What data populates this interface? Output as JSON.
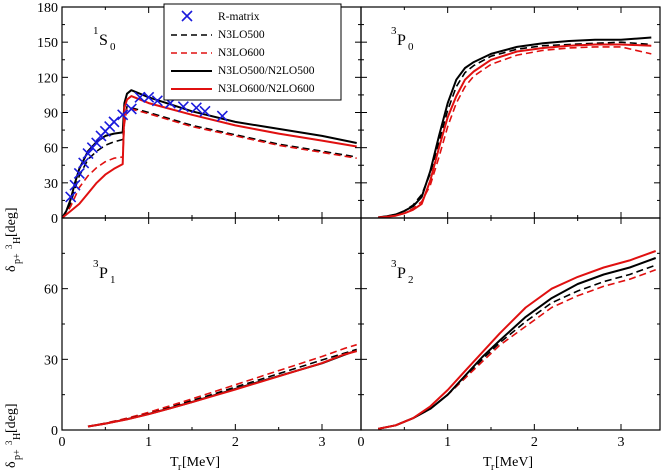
{
  "chart_data": {
    "type": "line",
    "layout": "2x2 shared axes",
    "legend": {
      "panel": "1S0",
      "placement": "top-right",
      "entries": [
        {
          "key": "rmatrix",
          "label": "R-matrix",
          "marker": "x",
          "color": "#1a1adc"
        },
        {
          "key": "n3lo500",
          "label": "N3LO500",
          "style": "dashed",
          "color": "#000000"
        },
        {
          "key": "n3lo600",
          "label": "N3LO600",
          "style": "dashed",
          "color": "#e01010"
        },
        {
          "key": "n3lo500n2lo500",
          "label": "N3LO500/N2LO500",
          "style": "solid",
          "color": "#000000"
        },
        {
          "key": "n3lo600n2lo600",
          "label": "N3LO600/N2LO600",
          "style": "solid",
          "color": "#e01010"
        }
      ]
    },
    "panels": [
      {
        "id": "1S0",
        "label_sup": "1",
        "label_main": "S",
        "label_sub": "0",
        "xlim": [
          0,
          3.45
        ],
        "ylim": [
          0,
          180
        ],
        "yticks": [
          0,
          30,
          60,
          90,
          120,
          150,
          180
        ],
        "series": [
          {
            "key": "n3lo500",
            "x": [
              0,
              0.05,
              0.1,
              0.15,
              0.2,
              0.3,
              0.4,
              0.5,
              0.6,
              0.7,
              0.72,
              0.75,
              1.0,
              1.5,
              2.0,
              2.5,
              3.0,
              3.4
            ],
            "y": [
              0,
              5,
              13,
              25,
              36,
              50,
              57,
              62,
              65,
              67,
              82,
              95,
              90,
              79,
              71,
              63,
              57,
              52
            ]
          },
          {
            "key": "n3lo600",
            "x": [
              0,
              0.05,
              0.1,
              0.15,
              0.2,
              0.3,
              0.4,
              0.5,
              0.6,
              0.7,
              0.72,
              0.75,
              1.0,
              1.5,
              2.0,
              2.5,
              3.0,
              3.4
            ],
            "y": [
              0,
              4,
              10,
              18,
              26,
              36,
              43,
              48,
              51,
              52,
              80,
              94,
              89,
              78,
              70,
              62,
              56,
              51
            ]
          },
          {
            "key": "n3lo500n2lo500",
            "x": [
              0,
              0.05,
              0.1,
              0.15,
              0.2,
              0.3,
              0.4,
              0.5,
              0.6,
              0.7,
              0.72,
              0.75,
              0.8,
              1.0,
              1.5,
              2.0,
              2.5,
              3.0,
              3.4
            ],
            "y": [
              0,
              6,
              16,
              30,
              42,
              57,
              65,
              70,
              72,
              73,
              98,
              106,
              109,
              103,
              91,
              82,
              76,
              70,
              64
            ]
          },
          {
            "key": "n3lo600n2lo600",
            "x": [
              0,
              0.05,
              0.1,
              0.2,
              0.3,
              0.4,
              0.5,
              0.6,
              0.7,
              0.72,
              0.75,
              0.8,
              1.0,
              1.5,
              2.0,
              2.5,
              3.0,
              3.4
            ],
            "y": [
              0,
              3,
              6,
              12,
              21,
              30,
              37,
              42,
              46,
              94,
              101,
              104,
              98,
              88,
              79,
              72,
              66,
              61
            ]
          },
          {
            "key": "rmatrix",
            "x": [
              0.1,
              0.15,
              0.2,
              0.25,
              0.3,
              0.35,
              0.4,
              0.45,
              0.5,
              0.55,
              0.6,
              0.7,
              0.8,
              0.9,
              1.0,
              1.1,
              1.25,
              1.4,
              1.55,
              1.65,
              1.85
            ],
            "y": [
              18,
              28,
              38,
              47,
              55,
              60,
              64,
              70,
              74,
              78,
              82,
              88,
              93,
              103,
              103,
              100,
              98,
              95,
              94,
              91,
              87
            ]
          }
        ]
      },
      {
        "id": "3P0",
        "label_sup": "3",
        "label_main": "P",
        "label_sub": "0",
        "xlim": [
          0,
          3.45
        ],
        "ylim": [
          0,
          180
        ],
        "yticks": [
          0,
          30,
          60,
          90,
          120,
          150,
          180
        ],
        "series": [
          {
            "key": "n3lo500",
            "x": [
              0.2,
              0.3,
              0.4,
              0.5,
              0.6,
              0.7,
              0.8,
              0.9,
              1.0,
              1.1,
              1.2,
              1.3,
              1.5,
              1.8,
              2.1,
              2.4,
              2.7,
              3.0,
              3.35
            ],
            "y": [
              0.5,
              1.5,
              3,
              6,
              11,
              20,
              38,
              65,
              92,
              112,
              124,
              130,
              138,
              144,
              147,
              148,
              149,
              150,
              148
            ]
          },
          {
            "key": "n3lo600",
            "x": [
              0.2,
              0.3,
              0.4,
              0.5,
              0.6,
              0.7,
              0.8,
              0.9,
              1.0,
              1.1,
              1.2,
              1.3,
              1.5,
              1.8,
              2.1,
              2.4,
              2.7,
              3.0,
              3.35
            ],
            "y": [
              0.5,
              1,
              2,
              4,
              8,
              14,
              28,
              52,
              78,
              98,
              112,
              121,
              131,
              139,
              143,
              145,
              146,
              146,
              140
            ]
          },
          {
            "key": "n3lo500n2lo500",
            "x": [
              0.2,
              0.3,
              0.4,
              0.5,
              0.6,
              0.7,
              0.8,
              0.9,
              1.0,
              1.1,
              1.2,
              1.3,
              1.5,
              1.8,
              2.1,
              2.4,
              2.7,
              3.0,
              3.35
            ],
            "y": [
              0.5,
              1.5,
              3,
              6,
              10,
              18,
              40,
              70,
              98,
              118,
              128,
              133,
              140,
              146,
              149,
              151,
              152,
              152,
              154
            ]
          },
          {
            "key": "n3lo600n2lo600",
            "x": [
              0.2,
              0.3,
              0.4,
              0.5,
              0.6,
              0.7,
              0.8,
              0.9,
              1.0,
              1.1,
              1.2,
              1.3,
              1.5,
              1.8,
              2.1,
              2.4,
              2.7,
              3.0,
              3.35
            ],
            "y": [
              0.5,
              1,
              2,
              4,
              7,
              12,
              32,
              60,
              86,
              104,
              118,
              125,
              135,
              142,
              145,
              147,
              148,
              148,
              147
            ]
          }
        ]
      },
      {
        "id": "3P1",
        "label_sup": "3",
        "label_main": "P",
        "label_sub": "1",
        "xlim": [
          0,
          3.45
        ],
        "ylim": [
          0,
          90
        ],
        "yticks": [
          0,
          30,
          60
        ],
        "series": [
          {
            "key": "n3lo500",
            "x": [
              0.3,
              0.5,
              0.75,
              1.0,
              1.25,
              1.5,
              1.75,
              2.0,
              2.25,
              2.5,
              2.75,
              3.0,
              3.25,
              3.4
            ],
            "y": [
              1.5,
              2.8,
              4.8,
              7.2,
              9.8,
              12.5,
              15.3,
              18.2,
              21.0,
              23.9,
              26.8,
              29.7,
              32.5,
              34.2
            ]
          },
          {
            "key": "n3lo600",
            "x": [
              0.3,
              0.5,
              0.75,
              1.0,
              1.25,
              1.5,
              1.75,
              2.0,
              2.25,
              2.5,
              2.75,
              3.0,
              3.25,
              3.4
            ],
            "y": [
              1.5,
              2.9,
              5.0,
              7.5,
              10.3,
              13.2,
              16.2,
              19.2,
              22.2,
              25.2,
              28.2,
              31.2,
              34.5,
              36.2
            ]
          },
          {
            "key": "n3lo500n2lo500",
            "x": [
              0.3,
              0.5,
              0.75,
              1.0,
              1.25,
              1.5,
              1.75,
              2.0,
              2.25,
              2.5,
              2.75,
              3.0,
              3.25,
              3.4
            ],
            "y": [
              1.5,
              2.7,
              4.6,
              6.8,
              9.3,
              11.9,
              14.7,
              17.4,
              20.2,
              22.9,
              25.6,
              28.3,
              31.8,
              33.8
            ]
          },
          {
            "key": "n3lo600n2lo600",
            "x": [
              0.3,
              0.5,
              0.75,
              1.0,
              1.25,
              1.5,
              1.75,
              2.0,
              2.25,
              2.5,
              2.75,
              3.0,
              3.25,
              3.4
            ],
            "y": [
              1.5,
              2.7,
              4.5,
              6.7,
              9.2,
              11.8,
              14.5,
              17.2,
              20.0,
              22.8,
              25.6,
              28.4,
              32.0,
              33.5
            ]
          }
        ]
      },
      {
        "id": "3P2",
        "label_sup": "3",
        "label_main": "P",
        "label_sub": "2",
        "xlim": [
          0,
          3.45
        ],
        "ylim": [
          0,
          90
        ],
        "yticks": [
          0,
          30,
          60
        ],
        "series": [
          {
            "key": "n3lo500",
            "x": [
              0.2,
              0.4,
              0.6,
              0.8,
              1.0,
              1.2,
              1.4,
              1.6,
              1.9,
              2.2,
              2.5,
              2.8,
              3.1,
              3.4
            ],
            "y": [
              0.5,
              2,
              5,
              9,
              15,
              22,
              30,
              37,
              46,
              54,
              59,
              63,
              66,
              70
            ]
          },
          {
            "key": "n3lo600",
            "x": [
              0.2,
              0.4,
              0.6,
              0.8,
              1.0,
              1.2,
              1.4,
              1.6,
              1.9,
              2.2,
              2.5,
              2.8,
              3.1,
              3.4
            ],
            "y": [
              0.5,
              2,
              5,
              9,
              15,
              22,
              29,
              36,
              44,
              52,
              57,
              61,
              64,
              68
            ]
          },
          {
            "key": "n3lo500n2lo500",
            "x": [
              0.2,
              0.4,
              0.6,
              0.8,
              1.0,
              1.2,
              1.4,
              1.6,
              1.9,
              2.2,
              2.5,
              2.8,
              3.1,
              3.4
            ],
            "y": [
              0.5,
              2,
              5,
              9,
              15,
              23,
              31,
              38,
              48,
              56,
              62,
              66,
              69,
              73
            ]
          },
          {
            "key": "n3lo600n2lo600",
            "x": [
              0.2,
              0.4,
              0.6,
              0.8,
              1.0,
              1.2,
              1.4,
              1.6,
              1.9,
              2.2,
              2.5,
              2.8,
              3.1,
              3.4
            ],
            "y": [
              0.5,
              2,
              5,
              10,
              17,
              25,
              33,
              41,
              52,
              60,
              65,
              69,
              72,
              76
            ]
          }
        ]
      }
    ],
    "xticks": [
      0,
      1,
      2,
      3
    ],
    "xlabel": {
      "main": "T",
      "sub": "r",
      "unit": " [MeV]"
    },
    "ylabel": {
      "main": "δ",
      "sub1": "p+",
      "sup": "3",
      "sub2": "H",
      "unit": " [deg]"
    }
  }
}
